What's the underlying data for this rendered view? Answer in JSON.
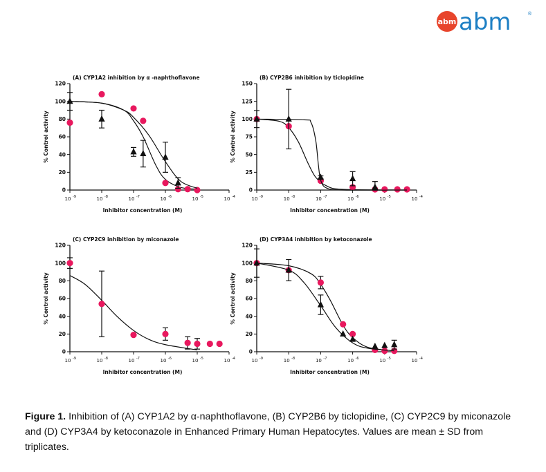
{
  "logo": {
    "badge_text": "abm",
    "word": "abm",
    "registered": "®",
    "colors": {
      "badge": "#e8452c",
      "word": "#1d7fc4"
    }
  },
  "caption": {
    "label": "Figure 1.",
    "text": " Inhibition of (A) CYP1A2 by α-naphthoflavone, (B) CYP2B6 by ticlopidine, (C) CYP2C9 by miconazole and (D) CYP3A4 by ketoconazole in Enhanced Primary Human Hepatocytes. Values are mean ± SD from triplicates."
  },
  "colors": {
    "circle_series": "#e8185e",
    "triangle_series": "#111111"
  },
  "chart_data": [
    {
      "type": "scatter",
      "title": "(A) CYP1A2 inhibition by α -naphthoflavone",
      "xlabel": "Inhibitor concentration (M)",
      "ylabel": "% Control activity",
      "x_scale": "log",
      "xlim": [
        1e-09,
        0.0001
      ],
      "ylim": [
        0,
        120
      ],
      "yticks": [
        0,
        20,
        40,
        60,
        80,
        100,
        120
      ],
      "xticks": [
        "10",
        "10",
        "10",
        "10",
        "10",
        "10"
      ],
      "xtick_exponents": [
        "-9",
        "-8",
        "-7",
        "-6",
        "-5",
        "-4"
      ],
      "series": [
        {
          "marker": "circle",
          "points": [
            {
              "x": 1e-09,
              "y": 76
            },
            {
              "x": 1e-08,
              "y": 108
            },
            {
              "x": 1e-07,
              "y": 92
            },
            {
              "x": 2e-07,
              "y": 78
            },
            {
              "x": 1e-06,
              "y": 8
            },
            {
              "x": 2.5e-06,
              "y": 1
            },
            {
              "x": 5e-06,
              "y": 1
            },
            {
              "x": 1e-05,
              "y": 0
            }
          ],
          "curve": [
            {
              "x": 1e-09,
              "y": 100
            },
            {
              "x": 1e-08,
              "y": 98
            },
            {
              "x": 5e-08,
              "y": 90
            },
            {
              "x": 1e-07,
              "y": 78
            },
            {
              "x": 2e-07,
              "y": 60
            },
            {
              "x": 5e-07,
              "y": 28
            },
            {
              "x": 1e-06,
              "y": 12
            },
            {
              "x": 3e-06,
              "y": 3
            },
            {
              "x": 1e-05,
              "y": 1
            }
          ]
        },
        {
          "marker": "triangle",
          "points": [
            {
              "x": 1e-09,
              "y": 100,
              "err": 10
            },
            {
              "x": 1e-08,
              "y": 80,
              "err": 10
            },
            {
              "x": 1e-07,
              "y": 43,
              "err": 5
            },
            {
              "x": 2e-07,
              "y": 41,
              "err": 15
            },
            {
              "x": 1e-06,
              "y": 37,
              "err": 17
            },
            {
              "x": 2.5e-06,
              "y": 8,
              "err": 6
            }
          ],
          "curve": [
            {
              "x": 1e-09,
              "y": 100
            },
            {
              "x": 1e-08,
              "y": 98
            },
            {
              "x": 5e-08,
              "y": 90
            },
            {
              "x": 1e-07,
              "y": 82
            },
            {
              "x": 3e-07,
              "y": 62
            },
            {
              "x": 1e-06,
              "y": 32
            },
            {
              "x": 3e-06,
              "y": 10
            },
            {
              "x": 1e-05,
              "y": 2
            }
          ]
        }
      ]
    },
    {
      "type": "scatter",
      "title": "(B) CYP2B6 inhibition by ticlopidine",
      "xlabel": "Inhibitor concentration (M)",
      "ylabel": "% Control activity",
      "x_scale": "log",
      "xlim": [
        1e-09,
        0.0001
      ],
      "ylim": [
        0,
        150
      ],
      "yticks": [
        0,
        25,
        50,
        75,
        100,
        125,
        150
      ],
      "xticks": [
        "10",
        "10",
        "10",
        "10",
        "10",
        "10"
      ],
      "xtick_exponents": [
        "-9",
        "-8",
        "-7",
        "-6",
        "-5",
        "-4"
      ],
      "series": [
        {
          "marker": "circle",
          "points": [
            {
              "x": 1e-09,
              "y": 100
            },
            {
              "x": 1e-08,
              "y": 90
            },
            {
              "x": 1e-07,
              "y": 13
            },
            {
              "x": 1e-06,
              "y": 4
            },
            {
              "x": 5e-06,
              "y": 1
            },
            {
              "x": 1e-05,
              "y": 1
            },
            {
              "x": 2.5e-05,
              "y": 1
            },
            {
              "x": 5e-05,
              "y": 1
            }
          ],
          "curve": [
            {
              "x": 1e-09,
              "y": 100
            },
            {
              "x": 5e-09,
              "y": 97
            },
            {
              "x": 1e-08,
              "y": 88
            },
            {
              "x": 2e-08,
              "y": 68
            },
            {
              "x": 4e-08,
              "y": 38
            },
            {
              "x": 7e-08,
              "y": 18
            },
            {
              "x": 1.5e-07,
              "y": 6
            },
            {
              "x": 5e-07,
              "y": 1
            },
            {
              "x": 5e-05,
              "y": 0
            }
          ]
        },
        {
          "marker": "triangle",
          "points": [
            {
              "x": 1e-09,
              "y": 100,
              "err": 12
            },
            {
              "x": 1e-08,
              "y": 100,
              "err": 42
            },
            {
              "x": 1e-07,
              "y": 18,
              "err": 2
            },
            {
              "x": 1e-06,
              "y": 16,
              "err": 10
            },
            {
              "x": 5e-06,
              "y": 4,
              "err": 8
            }
          ],
          "curve": [
            {
              "x": 1e-09,
              "y": 100
            },
            {
              "x": 3e-08,
              "y": 99
            },
            {
              "x": 5e-08,
              "y": 95
            },
            {
              "x": 7e-08,
              "y": 70
            },
            {
              "x": 8.5e-08,
              "y": 35
            },
            {
              "x": 1e-07,
              "y": 14
            },
            {
              "x": 1.5e-07,
              "y": 3
            },
            {
              "x": 5e-07,
              "y": 0
            },
            {
              "x": 5e-05,
              "y": 0
            }
          ]
        }
      ]
    },
    {
      "type": "scatter",
      "title": "(C) CYP2C9 inhibition by miconazole",
      "xlabel": "Inhibitor concentration (M)",
      "ylabel": "% Control activity",
      "x_scale": "log",
      "xlim": [
        1e-09,
        0.0001
      ],
      "ylim": [
        0,
        120
      ],
      "yticks": [
        0,
        20,
        40,
        60,
        80,
        100,
        120
      ],
      "xticks": [
        "10",
        "10",
        "10",
        "10",
        "10",
        "10"
      ],
      "xtick_exponents": [
        "-9",
        "-8",
        "-7",
        "-6",
        "-5",
        "-4"
      ],
      "series": [
        {
          "marker": "circle",
          "points": [
            {
              "x": 1e-09,
              "y": 100,
              "err": 6
            },
            {
              "x": 1e-08,
              "y": 54,
              "err": 37
            },
            {
              "x": 1e-07,
              "y": 19
            },
            {
              "x": 1e-06,
              "y": 20,
              "err": 7
            },
            {
              "x": 5e-06,
              "y": 10,
              "err": 7
            },
            {
              "x": 1e-05,
              "y": 9,
              "err": 6
            },
            {
              "x": 2.5e-05,
              "y": 9
            },
            {
              "x": 5e-05,
              "y": 9
            }
          ],
          "curve": [
            {
              "x": 1e-09,
              "y": 86
            },
            {
              "x": 3e-09,
              "y": 76
            },
            {
              "x": 1e-08,
              "y": 58
            },
            {
              "x": 3e-08,
              "y": 40
            },
            {
              "x": 1e-07,
              "y": 24
            },
            {
              "x": 3e-07,
              "y": 14
            },
            {
              "x": 1e-06,
              "y": 8
            },
            {
              "x": 1e-05,
              "y": 2
            }
          ]
        }
      ]
    },
    {
      "type": "scatter",
      "title": "(D) CYP3A4 inhibition by ketoconazole",
      "xlabel": "Inhibitor concentration (M)",
      "ylabel": "% Control activity",
      "x_scale": "log",
      "xlim": [
        1e-09,
        0.0001
      ],
      "ylim": [
        0,
        120
      ],
      "yticks": [
        0,
        20,
        40,
        60,
        80,
        100,
        120
      ],
      "xticks": [
        "10",
        "10",
        "10",
        "10",
        "10",
        "10"
      ],
      "xtick_exponents": [
        "-9",
        "-8",
        "-7",
        "-6",
        "-5",
        "-4"
      ],
      "series": [
        {
          "marker": "circle",
          "points": [
            {
              "x": 1e-09,
              "y": 100
            },
            {
              "x": 1e-08,
              "y": 92
            },
            {
              "x": 1e-07,
              "y": 78,
              "err": 7
            },
            {
              "x": 5e-07,
              "y": 31
            },
            {
              "x": 1e-06,
              "y": 20
            },
            {
              "x": 5e-06,
              "y": 2
            },
            {
              "x": 1e-05,
              "y": 1
            },
            {
              "x": 2e-05,
              "y": 1
            }
          ],
          "curve": [
            {
              "x": 1e-09,
              "y": 100
            },
            {
              "x": 1e-08,
              "y": 97
            },
            {
              "x": 5e-08,
              "y": 88
            },
            {
              "x": 1e-07,
              "y": 76
            },
            {
              "x": 2e-07,
              "y": 58
            },
            {
              "x": 5e-07,
              "y": 30
            },
            {
              "x": 1e-06,
              "y": 16
            },
            {
              "x": 3e-06,
              "y": 5
            },
            {
              "x": 2e-05,
              "y": 1
            }
          ]
        },
        {
          "marker": "triangle",
          "points": [
            {
              "x": 1e-09,
              "y": 100,
              "err": 16
            },
            {
              "x": 1e-08,
              "y": 92,
              "err": 12
            },
            {
              "x": 1e-07,
              "y": 53,
              "err": 11
            },
            {
              "x": 5e-07,
              "y": 20
            },
            {
              "x": 1e-06,
              "y": 14
            },
            {
              "x": 5e-06,
              "y": 6
            },
            {
              "x": 1e-05,
              "y": 7
            },
            {
              "x": 2e-05,
              "y": 8,
              "err": 5
            }
          ],
          "curve": [
            {
              "x": 1e-09,
              "y": 100
            },
            {
              "x": 1e-08,
              "y": 92
            },
            {
              "x": 3e-08,
              "y": 78
            },
            {
              "x": 1e-07,
              "y": 52
            },
            {
              "x": 3e-07,
              "y": 27
            },
            {
              "x": 1e-06,
              "y": 10
            },
            {
              "x": 3e-06,
              "y": 4
            },
            {
              "x": 2e-05,
              "y": 1
            }
          ]
        }
      ]
    }
  ]
}
